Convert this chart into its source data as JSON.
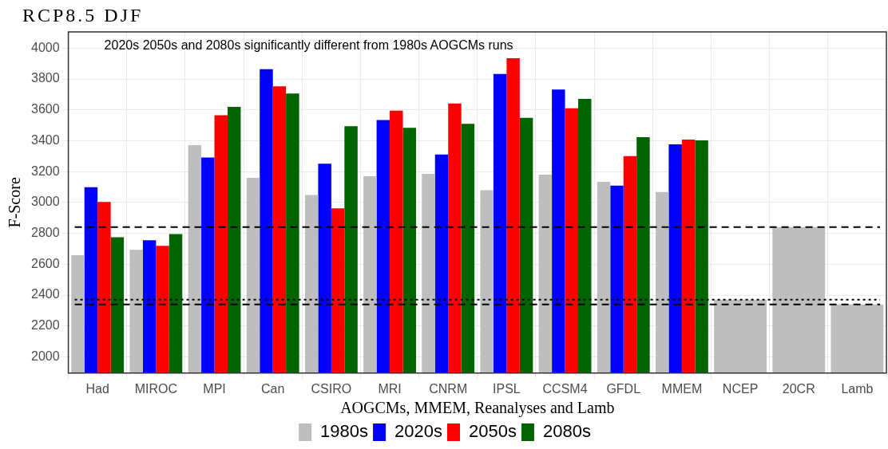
{
  "chart_data": {
    "type": "bar",
    "title": "RCP8.5 DJF",
    "xlabel": "AOGCMs, MMEM, Reanalyses and Lamb",
    "ylabel": "F-Score",
    "annotations": [
      "2020s 2050s and 2080s significantly different from 1980s AOGCMs runs"
    ],
    "categories": [
      "Had",
      "MIROC",
      "MPI",
      "Can",
      "CSIRO",
      "MRI",
      "CNRM",
      "IPSL",
      "CCSM4",
      "GFDL",
      "MMEM",
      "NCEP",
      "20CR",
      "Lamb"
    ],
    "series": [
      {
        "name": "1980s",
        "color": "#bebebe",
        "values": [
          2658,
          2694,
          3372,
          3160,
          3048,
          3170,
          3185,
          3079,
          3180,
          3134,
          3068,
          2370,
          2841,
          2339
        ]
      },
      {
        "name": "2020s",
        "color": "#0000ff",
        "values": [
          3099,
          2755,
          3291,
          3863,
          3251,
          3534,
          3311,
          3833,
          3732,
          3109,
          3377,
          null,
          null,
          null
        ]
      },
      {
        "name": "2050s",
        "color": "#ff0000",
        "values": [
          3003,
          2719,
          3565,
          3752,
          2962,
          3595,
          3641,
          3934,
          3610,
          3301,
          3408,
          null,
          null,
          null
        ]
      },
      {
        "name": "2080s",
        "color": "#006400",
        "values": [
          2775,
          2795,
          3620,
          3706,
          3494,
          3484,
          3509,
          3549,
          3671,
          3423,
          3403,
          null,
          null,
          null
        ]
      }
    ],
    "ylim": [
      1895,
      4105
    ],
    "yticks": [
      2000,
      2200,
      2400,
      2600,
      2800,
      3000,
      3200,
      3400,
      3600,
      3800,
      4000
    ],
    "ref_lines": [
      {
        "axis": "y",
        "value": 2840,
        "line_style": "dashed",
        "color": "#000000"
      },
      {
        "axis": "y",
        "value": 2370,
        "line_style": "dotted",
        "color": "#000000"
      },
      {
        "axis": "y",
        "value": 2340,
        "line_style": "dashed",
        "color": "#000000"
      }
    ],
    "grid": true,
    "legend": "bottom"
  }
}
